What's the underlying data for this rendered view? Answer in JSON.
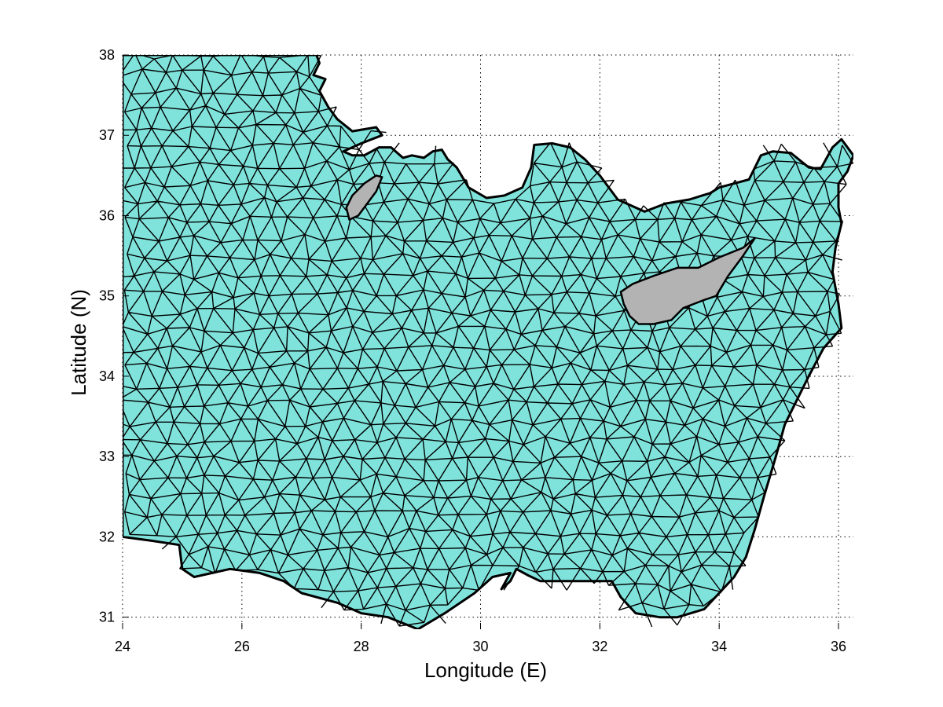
{
  "figure": {
    "xlabel": "Longitude (E)",
    "ylabel": "Latitude (N)"
  },
  "axes": {
    "xlim": [
      24,
      36.25
    ],
    "ylim": [
      30.85,
      38
    ],
    "xticks": [
      24,
      26,
      28,
      30,
      32,
      34,
      36
    ],
    "yticks": [
      31,
      32,
      33,
      34,
      35,
      36,
      37,
      38
    ],
    "xtick_labels": [
      "24",
      "26",
      "28",
      "30",
      "32",
      "34",
      "36"
    ],
    "ytick_labels": [
      "31",
      "32",
      "33",
      "34",
      "35",
      "36",
      "37",
      "38"
    ],
    "grid": "dotted"
  },
  "colors": {
    "water_fill": "#7fe3dc",
    "land_fill": "#b3b3b3",
    "mesh_lines": "#000000",
    "grid_lines": "#000000"
  },
  "map": {
    "type": "triangular finite-element mesh",
    "domain_outline": [
      [
        24.0,
        38.0
      ],
      [
        27.25,
        38.0
      ],
      [
        27.3,
        37.9
      ],
      [
        27.2,
        37.75
      ],
      [
        27.4,
        37.7
      ],
      [
        27.3,
        37.55
      ],
      [
        27.45,
        37.35
      ],
      [
        27.6,
        37.2
      ],
      [
        27.85,
        37.05
      ],
      [
        28.25,
        37.1
      ],
      [
        28.35,
        37.0
      ],
      [
        28.0,
        36.9
      ],
      [
        27.7,
        36.8
      ],
      [
        27.85,
        36.75
      ],
      [
        28.05,
        36.75
      ],
      [
        28.3,
        36.85
      ],
      [
        28.5,
        36.85
      ],
      [
        28.7,
        36.72
      ],
      [
        28.85,
        36.75
      ],
      [
        29.05,
        36.72
      ],
      [
        29.2,
        36.8
      ],
      [
        29.35,
        36.82
      ],
      [
        29.45,
        36.7
      ],
      [
        29.6,
        36.6
      ],
      [
        29.8,
        36.35
      ],
      [
        30.1,
        36.22
      ],
      [
        30.4,
        36.25
      ],
      [
        30.7,
        36.35
      ],
      [
        30.85,
        36.6
      ],
      [
        30.9,
        36.88
      ],
      [
        31.2,
        36.9
      ],
      [
        31.5,
        36.85
      ],
      [
        31.75,
        36.7
      ],
      [
        32.0,
        36.5
      ],
      [
        32.3,
        36.2
      ],
      [
        32.75,
        36.05
      ],
      [
        33.1,
        36.15
      ],
      [
        33.5,
        36.2
      ],
      [
        33.85,
        36.28
      ],
      [
        34.0,
        36.35
      ],
      [
        34.25,
        36.4
      ],
      [
        34.5,
        36.45
      ],
      [
        34.7,
        36.75
      ],
      [
        34.9,
        36.8
      ],
      [
        35.2,
        36.78
      ],
      [
        35.5,
        36.6
      ],
      [
        35.7,
        36.58
      ],
      [
        35.9,
        36.85
      ],
      [
        36.05,
        36.95
      ],
      [
        36.25,
        36.75
      ],
      [
        36.15,
        36.55
      ],
      [
        36.0,
        36.4
      ],
      [
        36.0,
        36.1
      ],
      [
        36.05,
        35.9
      ],
      [
        35.95,
        35.6
      ],
      [
        35.9,
        35.3
      ],
      [
        36.0,
        34.9
      ],
      [
        36.05,
        34.6
      ],
      [
        35.75,
        34.35
      ],
      [
        35.5,
        34.0
      ],
      [
        35.3,
        33.7
      ],
      [
        35.1,
        33.4
      ],
      [
        34.95,
        33.0
      ],
      [
        34.75,
        32.5
      ],
      [
        34.6,
        32.1
      ],
      [
        34.45,
        31.75
      ],
      [
        34.25,
        31.5
      ],
      [
        34.0,
        31.3
      ],
      [
        33.75,
        31.1
      ],
      [
        33.3,
        31.0
      ],
      [
        33.0,
        31.0
      ],
      [
        32.6,
        31.05
      ],
      [
        32.35,
        31.25
      ],
      [
        32.2,
        31.45
      ],
      [
        31.6,
        31.45
      ],
      [
        31.0,
        31.45
      ],
      [
        30.8,
        31.52
      ],
      [
        30.6,
        31.6
      ],
      [
        30.5,
        31.45
      ],
      [
        30.35,
        31.35
      ],
      [
        30.5,
        31.55
      ],
      [
        30.2,
        31.5
      ],
      [
        29.9,
        31.3
      ],
      [
        29.4,
        31.05
      ],
      [
        28.95,
        30.85
      ],
      [
        28.45,
        31.0
      ],
      [
        28.0,
        31.05
      ],
      [
        27.6,
        31.18
      ],
      [
        27.0,
        31.3
      ],
      [
        26.7,
        31.45
      ],
      [
        26.3,
        31.55
      ],
      [
        25.8,
        31.6
      ],
      [
        25.5,
        31.55
      ],
      [
        25.2,
        31.5
      ],
      [
        25.0,
        31.6
      ],
      [
        24.95,
        31.9
      ],
      [
        24.5,
        31.95
      ],
      [
        24.0,
        32.0
      ]
    ],
    "islands": [
      {
        "outline": [
          [
            27.8,
            35.95
          ],
          [
            27.95,
            36.0
          ],
          [
            28.1,
            36.15
          ],
          [
            28.25,
            36.3
          ],
          [
            28.35,
            36.48
          ],
          [
            28.25,
            36.5
          ],
          [
            28.05,
            36.4
          ],
          [
            27.85,
            36.25
          ],
          [
            27.75,
            36.1
          ]
        ]
      },
      {
        "outline": [
          [
            32.35,
            35.05
          ],
          [
            32.55,
            35.15
          ],
          [
            32.9,
            35.25
          ],
          [
            33.3,
            35.35
          ],
          [
            33.65,
            35.35
          ],
          [
            34.0,
            35.48
          ],
          [
            34.4,
            35.6
          ],
          [
            34.6,
            35.72
          ],
          [
            34.4,
            35.5
          ],
          [
            34.15,
            35.25
          ],
          [
            33.95,
            35.0
          ],
          [
            33.75,
            34.95
          ],
          [
            33.4,
            34.85
          ],
          [
            33.2,
            34.7
          ],
          [
            32.9,
            34.65
          ],
          [
            32.65,
            34.65
          ],
          [
            32.5,
            34.75
          ],
          [
            32.4,
            34.9
          ]
        ]
      }
    ]
  }
}
